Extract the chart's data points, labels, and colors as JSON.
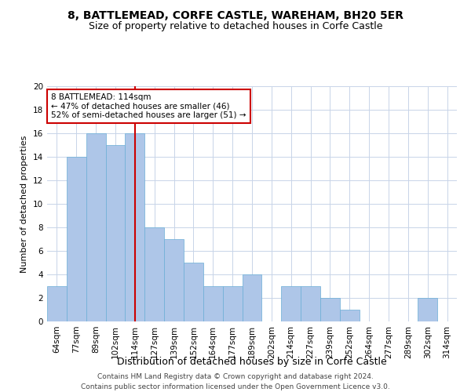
{
  "title": "8, BATTLEMEAD, CORFE CASTLE, WAREHAM, BH20 5ER",
  "subtitle": "Size of property relative to detached houses in Corfe Castle",
  "xlabel": "Distribution of detached houses by size in Corfe Castle",
  "ylabel": "Number of detached properties",
  "categories": [
    "64sqm",
    "77sqm",
    "89sqm",
    "102sqm",
    "114sqm",
    "127sqm",
    "139sqm",
    "152sqm",
    "164sqm",
    "177sqm",
    "189sqm",
    "202sqm",
    "214sqm",
    "227sqm",
    "239sqm",
    "252sqm",
    "264sqm",
    "277sqm",
    "289sqm",
    "302sqm",
    "314sqm"
  ],
  "values": [
    3,
    14,
    16,
    15,
    16,
    8,
    7,
    5,
    3,
    3,
    4,
    0,
    3,
    3,
    2,
    1,
    0,
    0,
    0,
    2,
    0
  ],
  "bar_color": "#aec6e8",
  "bar_edge_color": "#6aaed6",
  "highlight_index": 4,
  "highlight_line_color": "#cc0000",
  "annotation_text": "8 BATTLEMEAD: 114sqm\n← 47% of detached houses are smaller (46)\n52% of semi-detached houses are larger (51) →",
  "annotation_box_color": "#ffffff",
  "annotation_box_edge_color": "#cc0000",
  "ylim": [
    0,
    20
  ],
  "yticks": [
    0,
    2,
    4,
    6,
    8,
    10,
    12,
    14,
    16,
    18,
    20
  ],
  "footnote": "Contains HM Land Registry data © Crown copyright and database right 2024.\nContains public sector information licensed under the Open Government Licence v3.0.",
  "title_fontsize": 10,
  "subtitle_fontsize": 9,
  "xlabel_fontsize": 9,
  "ylabel_fontsize": 8,
  "tick_fontsize": 7.5,
  "annot_fontsize": 7.5,
  "footnote_fontsize": 6.5,
  "bg_color": "#ffffff",
  "grid_color": "#c8d4e8"
}
